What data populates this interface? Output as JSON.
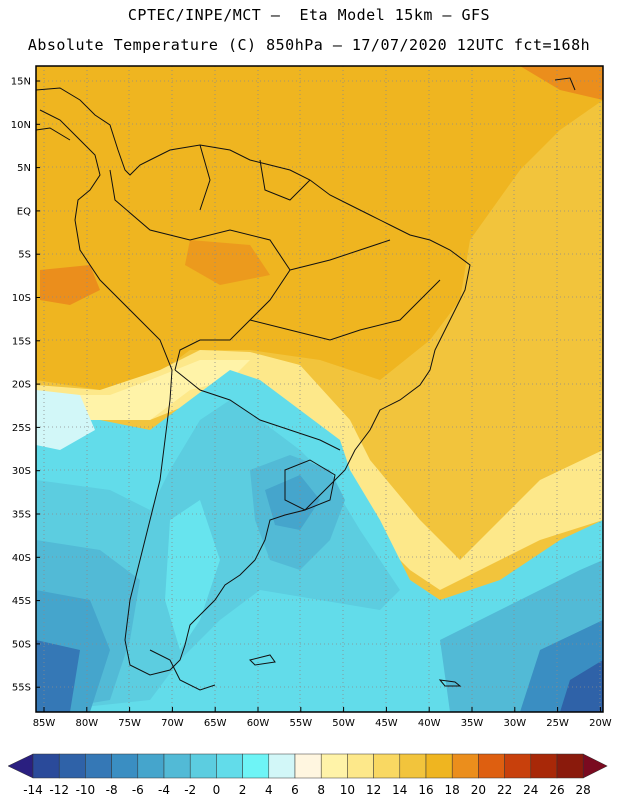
{
  "header": {
    "line1": "CPTEC/INPE/MCT –  Eta Model 15km – GFS",
    "line2": "Absolute Temperature (C) 850hPa – 17/07/2020 12UTC fct=168h"
  },
  "map": {
    "lat_labels": [
      "15N",
      "10N",
      "5N",
      "EQ",
      "5S",
      "10S",
      "15S",
      "20S",
      "25S",
      "30S",
      "35S",
      "40S",
      "45S",
      "50S",
      "55S"
    ],
    "lon_labels": [
      "85W",
      "80W",
      "75W",
      "70W",
      "65W",
      "60W",
      "55W",
      "50W",
      "45W",
      "40W",
      "35W",
      "30W",
      "25W",
      "20W"
    ]
  },
  "colorbar": {
    "levels": [
      "-14",
      "-12",
      "-10",
      "-8",
      "-6",
      "-4",
      "-2",
      "0",
      "2",
      "4",
      "6",
      "8",
      "10",
      "12",
      "14",
      "16",
      "18",
      "20",
      "22",
      "24",
      "26",
      "28"
    ],
    "under_color": "#2a1f80",
    "over_color": "#7a0a20",
    "colors": [
      "#2a4a9a",
      "#2f62a8",
      "#3578b6",
      "#3a8ec2",
      "#45a5cc",
      "#52bad6",
      "#5ccde0",
      "#62dcea",
      "#6ef4f6",
      "#d2f7f8",
      "#fff6e0",
      "#fff3a8",
      "#fde88a",
      "#f9d862",
      "#f2c43c",
      "#efb520",
      "#eb8e1c",
      "#de5f10",
      "#c8400c",
      "#a82808",
      "#8a1a0c"
    ]
  }
}
